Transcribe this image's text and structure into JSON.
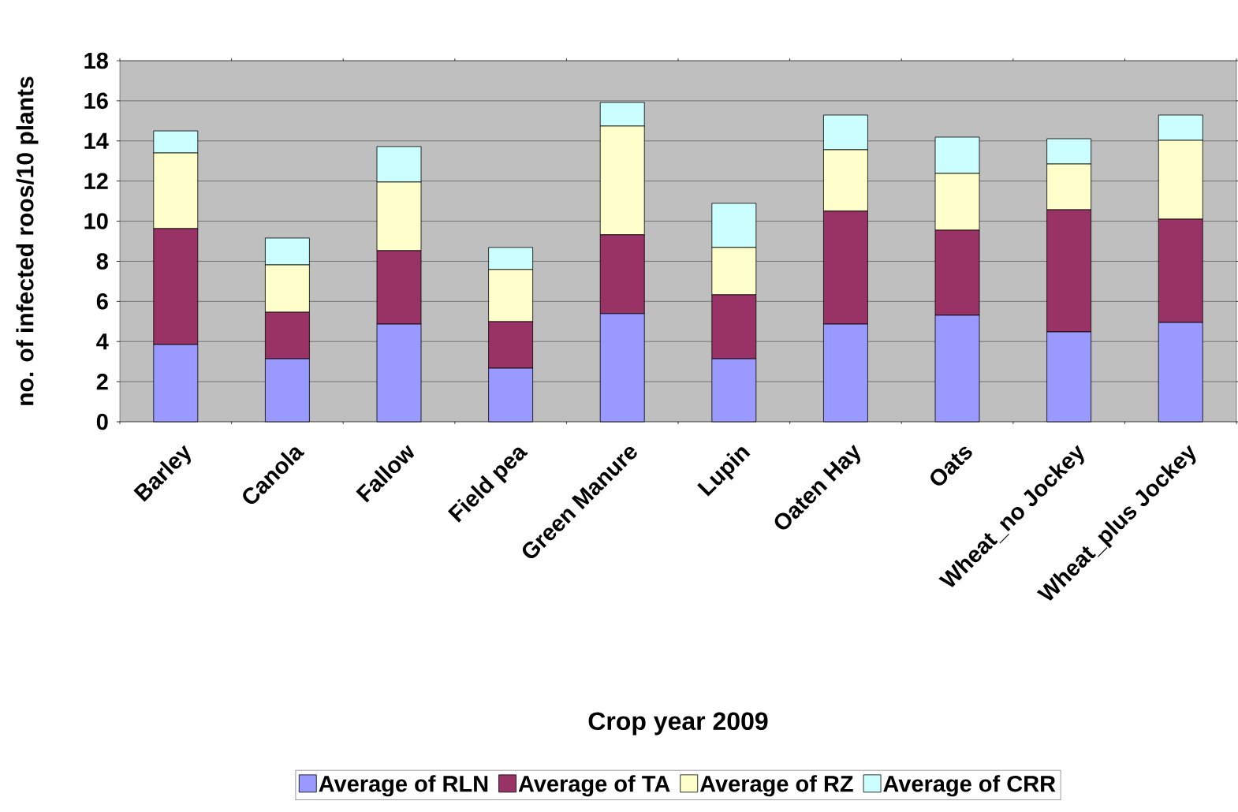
{
  "chart_data": {
    "type": "bar",
    "stacked": true,
    "xlabel": "Crop year 2009",
    "ylabel": "no. of infected roos/10 plants",
    "categories": [
      "Barley",
      "Canola",
      "Fallow",
      "Field pea",
      "Green Manure",
      "Lupin",
      "Oaten Hay",
      "Oats",
      "Wheat_no Jockey",
      "Wheat_plus Jockey"
    ],
    "series": [
      {
        "name": "Average of RLN",
        "color": "#9999ff",
        "values": [
          3.85,
          3.14,
          4.87,
          2.67,
          5.39,
          3.14,
          4.87,
          5.31,
          4.48,
          4.95
        ]
      },
      {
        "name": "Average of TA",
        "color": "#993366",
        "values": [
          5.78,
          2.32,
          3.66,
          2.32,
          3.93,
          3.19,
          5.63,
          4.24,
          6.09,
          5.15
        ]
      },
      {
        "name": "Average of RZ",
        "color": "#ffffcc",
        "values": [
          3.77,
          2.36,
          3.42,
          2.6,
          5.42,
          2.36,
          3.06,
          2.83,
          2.28,
          3.93
        ]
      },
      {
        "name": "Average of CRR",
        "color": "#ccffff",
        "values": [
          1.1,
          1.34,
          1.77,
          1.1,
          1.18,
          2.2,
          1.73,
          1.81,
          1.26,
          1.26
        ]
      }
    ],
    "ylim": [
      0,
      18
    ],
    "yticks": [
      0,
      2,
      4,
      6,
      8,
      10,
      12,
      14,
      16,
      18
    ],
    "grid": "y",
    "legend": "bottom"
  }
}
